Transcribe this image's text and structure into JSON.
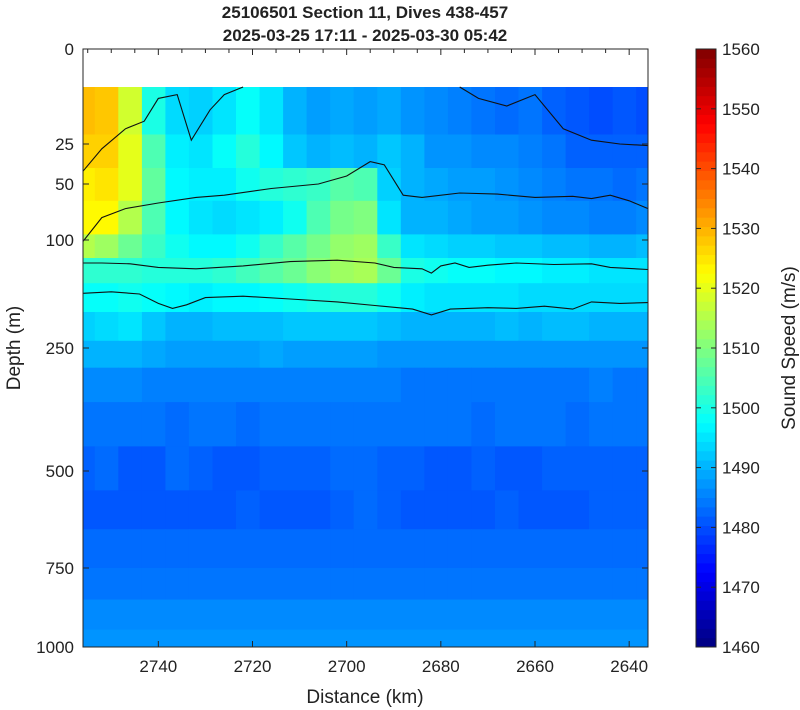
{
  "chart_data": {
    "type": "heatmap",
    "title": "25106501 Section 11, Dives 438-457",
    "subtitle": "2025-03-25 17:11 - 2025-03-30 05:42",
    "xlabel": "Distance (km)",
    "ylabel": "Depth (m)",
    "colorbar_label": "Sound Speed (m/s)",
    "x_reversed": true,
    "xlim": [
      2756,
      2636
    ],
    "x_ticks": [
      2740,
      2720,
      2700,
      2680,
      2660,
      2640
    ],
    "ylim": [
      0,
      1000
    ],
    "y_ticks": [
      0,
      25,
      50,
      100,
      250,
      500,
      750,
      1000
    ],
    "y_scale": "non-uniform (stretched near surface)",
    "y_tick_depths": [
      0,
      25,
      50,
      100,
      250,
      500,
      750,
      1000
    ],
    "clim": [
      1460,
      1560
    ],
    "colorbar_ticks": [
      1460,
      1470,
      1480,
      1490,
      1500,
      1510,
      1520,
      1530,
      1540,
      1550,
      1560
    ],
    "colormap": "jet",
    "grid": false,
    "data_top_depth": 10,
    "contour_lines": [
      {
        "level": "shallow contour",
        "points": [
          [
            2756,
            42
          ],
          [
            2752,
            28
          ],
          [
            2747,
            21
          ],
          [
            2743,
            19
          ],
          [
            2740,
            13
          ],
          [
            2736,
            12
          ],
          [
            2733,
            24
          ],
          [
            2729,
            16
          ],
          [
            2726,
            12
          ],
          [
            2722,
            10
          ]
        ]
      },
      {
        "level": "mid contour",
        "points": [
          [
            2756,
            102
          ],
          [
            2752,
            80
          ],
          [
            2747,
            72
          ],
          [
            2740,
            67
          ],
          [
            2732,
            62
          ],
          [
            2726,
            60
          ],
          [
            2716,
            54
          ],
          [
            2706,
            50
          ],
          [
            2700,
            45
          ],
          [
            2695,
            36
          ],
          [
            2692,
            38
          ],
          [
            2688,
            60
          ],
          [
            2684,
            62
          ],
          [
            2676,
            58
          ],
          [
            2668,
            59
          ],
          [
            2660,
            62
          ],
          [
            2652,
            61
          ],
          [
            2648,
            63
          ],
          [
            2644,
            60
          ],
          [
            2640,
            65
          ],
          [
            2636,
            72
          ]
        ]
      },
      {
        "level": "lower contour",
        "points": [
          [
            2756,
            132
          ],
          [
            2752,
            132
          ],
          [
            2746,
            133
          ],
          [
            2740,
            138
          ],
          [
            2732,
            140
          ],
          [
            2722,
            136
          ],
          [
            2712,
            130
          ],
          [
            2702,
            128
          ],
          [
            2694,
            132
          ],
          [
            2690,
            138
          ],
          [
            2684,
            140
          ],
          [
            2682,
            146
          ],
          [
            2680,
            136
          ],
          [
            2677,
            132
          ],
          [
            2674,
            138
          ],
          [
            2670,
            135
          ],
          [
            2664,
            132
          ],
          [
            2656,
            134
          ],
          [
            2648,
            133
          ],
          [
            2644,
            138
          ],
          [
            2636,
            141
          ]
        ]
      },
      {
        "level": "deep contour",
        "points": [
          [
            2756,
            174
          ],
          [
            2750,
            172
          ],
          [
            2744,
            175
          ],
          [
            2740,
            188
          ],
          [
            2737,
            195
          ],
          [
            2734,
            190
          ],
          [
            2730,
            180
          ],
          [
            2722,
            178
          ],
          [
            2712,
            182
          ],
          [
            2702,
            186
          ],
          [
            2694,
            191
          ],
          [
            2686,
            196
          ],
          [
            2682,
            204
          ],
          [
            2678,
            196
          ],
          [
            2670,
            194
          ],
          [
            2664,
            195
          ],
          [
            2658,
            192
          ],
          [
            2652,
            196
          ],
          [
            2648,
            186
          ],
          [
            2642,
            188
          ],
          [
            2636,
            187
          ]
        ]
      },
      {
        "level": "upper-right contour",
        "points": [
          [
            2676,
            10
          ],
          [
            2672,
            13
          ],
          [
            2666,
            15
          ],
          [
            2660,
            12
          ],
          [
            2654,
            21
          ],
          [
            2648,
            24
          ],
          [
            2642,
            25
          ],
          [
            2636,
            26
          ]
        ]
      }
    ],
    "field_values": [
      {
        "depth": 15,
        "values": [
          1529,
          1528,
          1518,
          1500,
          1494,
          1493,
          1495,
          1498,
          1495,
          1490,
          1488,
          1489,
          1488,
          1489,
          1487,
          1486,
          1485,
          1484,
          1483,
          1484,
          1482,
          1481,
          1480,
          1481,
          1480
        ]
      },
      {
        "depth": 30,
        "values": [
          1527,
          1527,
          1520,
          1505,
          1496,
          1495,
          1498,
          1501,
          1497,
          1492,
          1490,
          1491,
          1490,
          1492,
          1490,
          1487,
          1487,
          1486,
          1486,
          1485,
          1484,
          1482,
          1482,
          1482,
          1482
        ]
      },
      {
        "depth": 50,
        "values": [
          1524,
          1525,
          1520,
          1507,
          1497,
          1496,
          1496,
          1499,
          1501,
          1502,
          1503,
          1506,
          1505,
          1493,
          1490,
          1489,
          1488,
          1488,
          1487,
          1486,
          1485,
          1484,
          1484,
          1483,
          1484
        ]
      },
      {
        "depth": 80,
        "values": [
          1523,
          1523,
          1515,
          1505,
          1497,
          1495,
          1494,
          1495,
          1496,
          1499,
          1505,
          1509,
          1510,
          1495,
          1490,
          1490,
          1489,
          1488,
          1488,
          1487,
          1486,
          1486,
          1485,
          1485,
          1486
        ]
      },
      {
        "depth": 110,
        "values": [
          1515,
          1513,
          1508,
          1503,
          1499,
          1497,
          1497,
          1499,
          1503,
          1506,
          1509,
          1512,
          1513,
          1503,
          1495,
          1494,
          1493,
          1493,
          1492,
          1492,
          1491,
          1491,
          1490,
          1490,
          1491
        ]
      },
      {
        "depth": 140,
        "values": [
          1502,
          1502,
          1502,
          1501,
          1501,
          1501,
          1502,
          1504,
          1506,
          1508,
          1511,
          1513,
          1514,
          1508,
          1500,
          1499,
          1498,
          1498,
          1497,
          1497,
          1496,
          1496,
          1495,
          1495,
          1495
        ]
      },
      {
        "depth": 180,
        "values": [
          1498,
          1498,
          1499,
          1498,
          1497,
          1496,
          1497,
          1497,
          1498,
          1499,
          1500,
          1501,
          1501,
          1499,
          1496,
          1495,
          1495,
          1495,
          1495,
          1494,
          1494,
          1494,
          1494,
          1494,
          1494
        ]
      },
      {
        "depth": 220,
        "values": [
          1493,
          1494,
          1495,
          1492,
          1490,
          1490,
          1491,
          1491,
          1491,
          1492,
          1492,
          1492,
          1492,
          1491,
          1490,
          1490,
          1490,
          1490,
          1491,
          1490,
          1491,
          1491,
          1490,
          1490,
          1490
        ]
      },
      {
        "depth": 260,
        "values": [
          1490,
          1490,
          1490,
          1489,
          1488,
          1488,
          1488,
          1488,
          1489,
          1488,
          1488,
          1488,
          1488,
          1487,
          1487,
          1487,
          1487,
          1487,
          1487,
          1487,
          1487,
          1487,
          1487,
          1487,
          1487
        ]
      },
      {
        "depth": 320,
        "values": [
          1486,
          1486,
          1486,
          1485,
          1485,
          1485,
          1485,
          1485,
          1485,
          1485,
          1485,
          1485,
          1485,
          1485,
          1484,
          1484,
          1484,
          1484,
          1484,
          1484,
          1484,
          1484,
          1485,
          1484,
          1484
        ]
      },
      {
        "depth": 400,
        "values": [
          1484,
          1484,
          1484,
          1484,
          1483,
          1484,
          1484,
          1483,
          1484,
          1484,
          1484,
          1484,
          1484,
          1484,
          1484,
          1484,
          1484,
          1483,
          1484,
          1484,
          1484,
          1483,
          1484,
          1484,
          1484
        ]
      },
      {
        "depth": 500,
        "values": [
          1482,
          1483,
          1481,
          1481,
          1483,
          1482,
          1481,
          1481,
          1482,
          1482,
          1482,
          1483,
          1483,
          1482,
          1482,
          1481,
          1481,
          1482,
          1481,
          1481,
          1482,
          1482,
          1482,
          1482,
          1482
        ]
      },
      {
        "depth": 600,
        "values": [
          1481,
          1481,
          1481,
          1481,
          1481,
          1481,
          1481,
          1482,
          1481,
          1481,
          1481,
          1482,
          1483,
          1482,
          1481,
          1481,
          1481,
          1481,
          1482,
          1481,
          1481,
          1481,
          1482,
          1482,
          1482
        ]
      },
      {
        "depth": 700,
        "values": [
          1483,
          1483,
          1483,
          1483,
          1483,
          1483,
          1483,
          1483,
          1483,
          1483,
          1483,
          1483,
          1483,
          1483,
          1483,
          1483,
          1483,
          1483,
          1483,
          1483,
          1483,
          1483,
          1483,
          1483,
          1483
        ]
      },
      {
        "depth": 800,
        "values": [
          1484,
          1484,
          1484,
          1484,
          1484,
          1484,
          1484,
          1484,
          1484,
          1484,
          1484,
          1484,
          1484,
          1484,
          1484,
          1484,
          1484,
          1484,
          1484,
          1484,
          1484,
          1484,
          1484,
          1484,
          1484
        ]
      },
      {
        "depth": 900,
        "values": [
          1486,
          1486,
          1486,
          1486,
          1486,
          1486,
          1486,
          1486,
          1486,
          1486,
          1486,
          1486,
          1486,
          1486,
          1486,
          1486,
          1486,
          1486,
          1486,
          1486,
          1486,
          1486,
          1486,
          1486,
          1486
        ]
      },
      {
        "depth": 990,
        "values": [
          1487,
          1487,
          1487,
          1487,
          1487,
          1487,
          1487,
          1487,
          1487,
          1487,
          1487,
          1487,
          1487,
          1487,
          1487,
          1487,
          1487,
          1487,
          1487,
          1487,
          1487,
          1487,
          1487,
          1487,
          1487
        ]
      }
    ],
    "field_distances": [
      2756,
      2751,
      2746,
      2741,
      2736,
      2731,
      2726,
      2721,
      2716,
      2711,
      2706,
      2701,
      2696,
      2691,
      2686,
      2681,
      2676,
      2671,
      2666,
      2661,
      2656,
      2651,
      2646,
      2641,
      2636
    ]
  }
}
